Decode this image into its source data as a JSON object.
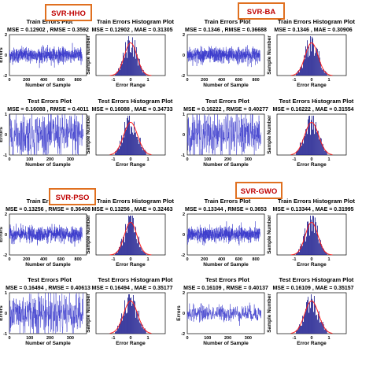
{
  "colors": {
    "badge_border": "#e07020",
    "badge_fill": "#ffffff",
    "badge_text": "#c00000",
    "signal": "#3a3acc",
    "bars": "#1c1c8e",
    "fit": "#ff2020",
    "axis": "#000000"
  },
  "chart_data": [
    {
      "group": "SVR-HHO",
      "panels": [
        {
          "type": "line",
          "title": "Train Errors Plot",
          "stats": "MSE = 0.12902 , RMSE = 0.3592",
          "xlabel": "Number of Sample",
          "ylabel": "Errors",
          "xlim": [
            0,
            900
          ],
          "ylim": [
            -2,
            2
          ],
          "x_ticks": [
            "0",
            "200",
            "400",
            "600",
            "800"
          ],
          "y_ticks": [
            "2",
            "0",
            "-2"
          ],
          "samples": 850,
          "error_amplitude": 0.36
        },
        {
          "type": "bar",
          "title": "Train Errors Histogram Plot",
          "stats": "MSE = 0.12902 , MAE = 0.31305",
          "xlabel": "Error Range",
          "ylabel": "Sample Number",
          "xlim": [
            -2,
            2
          ],
          "x_ticks": [
            "-1",
            "0",
            "1"
          ],
          "peak_count": 50,
          "sigma": 0.36
        }
      ]
    },
    {
      "group": "SVR-HHO",
      "panels": [
        {
          "type": "line",
          "title": "Test Errors Plot",
          "stats": "MSE = 0.16088 , RMSE = 0.4011",
          "xlabel": "Number of Sample",
          "ylabel": "Errors",
          "xlim": [
            0,
            380
          ],
          "ylim": [
            -1,
            1
          ],
          "x_ticks": [
            "0",
            "100",
            "200",
            "300"
          ],
          "y_ticks": [
            "1",
            "0",
            "-1"
          ],
          "samples": 365,
          "error_amplitude": 0.4
        },
        {
          "type": "bar",
          "title": "Test Errors Histogram Plot",
          "stats": "MSE = 0.16088 , MAE = 0.34733",
          "xlabel": "Error Range",
          "ylabel": "Sample Number",
          "xlim": [
            -2,
            2
          ],
          "x_ticks": [
            "-1",
            "0",
            "1"
          ],
          "peak_count": 20,
          "sigma": 0.4
        }
      ]
    },
    {
      "group": "SVR-BA",
      "panels": [
        {
          "type": "line",
          "title": "Train Errors Plot",
          "stats": "MSE = 0.1346 , RMSE = 0.36688",
          "xlabel": "Number of Sample",
          "ylabel": "",
          "xlim": [
            0,
            900
          ],
          "ylim": [
            -2,
            2
          ],
          "x_ticks": [
            "0",
            "200",
            "400",
            "600",
            "800"
          ],
          "y_ticks": [
            "2",
            "0",
            "-2"
          ],
          "samples": 850,
          "error_amplitude": 0.37
        },
        {
          "type": "bar",
          "title": "Train Errors Histogram Plot",
          "stats": "MSE = 0.1346 , MAE = 0.30906",
          "xlabel": "Error Range",
          "ylabel": "Sample Number",
          "xlim": [
            -2,
            2
          ],
          "x_ticks": [
            "-1",
            "0",
            "1"
          ],
          "peak_count": 50,
          "sigma": 0.37
        }
      ]
    },
    {
      "group": "SVR-BA",
      "panels": [
        {
          "type": "line",
          "title": "Test Errors Plot",
          "stats": "MSE = 0.16222 , RMSE = 0.40277",
          "xlabel": "Number of Sample",
          "ylabel": "",
          "xlim": [
            0,
            380
          ],
          "ylim": [
            -1,
            1
          ],
          "x_ticks": [
            "0",
            "100",
            "200",
            "300"
          ],
          "y_ticks": [
            "1",
            "0",
            "-1"
          ],
          "samples": 365,
          "error_amplitude": 0.4
        },
        {
          "type": "bar",
          "title": "Test Errors Histogram Plot",
          "stats": "MSE = 0.16222 , MAE = 0.31554",
          "xlabel": "Error Range",
          "ylabel": "Sample Number",
          "xlim": [
            -2,
            2
          ],
          "x_ticks": [
            "-1",
            "0",
            "1"
          ],
          "peak_count": 20,
          "sigma": 0.4
        }
      ]
    },
    {
      "group": "SVR-PSO",
      "panels": [
        {
          "type": "line",
          "title": "Train Errors Plot",
          "stats": "MSE = 0.13256 , RMSE = 0.36408",
          "xlabel": "Number of Sample",
          "ylabel": "Errors",
          "xlim": [
            0,
            900
          ],
          "ylim": [
            -2,
            2
          ],
          "x_ticks": [
            "0",
            "200",
            "400",
            "600",
            "800"
          ],
          "y_ticks": [
            "2",
            "0",
            "-2"
          ],
          "samples": 850,
          "error_amplitude": 0.36
        },
        {
          "type": "bar",
          "title": "Train Errors Histogram Plot",
          "stats": "MSE = 0.13256 , MAE = 0.32463",
          "xlabel": "Error Range",
          "ylabel": "Sample Number",
          "xlim": [
            -2,
            2
          ],
          "x_ticks": [
            "-1",
            "0",
            "1"
          ],
          "peak_count": 50,
          "sigma": 0.36
        }
      ]
    },
    {
      "group": "SVR-PSO",
      "panels": [
        {
          "type": "line",
          "title": "Test Errors Plot",
          "stats": "MSE = 0.16494 , RMSE = 0.40613",
          "xlabel": "Number of Sample",
          "ylabel": "Errors",
          "xlim": [
            0,
            380
          ],
          "ylim": [
            -1,
            1
          ],
          "x_ticks": [
            "0",
            "100",
            "200",
            "300"
          ],
          "y_ticks": [
            "1",
            "0",
            "-1"
          ],
          "samples": 365,
          "error_amplitude": 0.4
        },
        {
          "type": "bar",
          "title": "Test Errors Histogram Plot",
          "stats": "MSE = 0.16494 , MAE = 0.35177",
          "xlabel": "Error Range",
          "ylabel": "Sample Number",
          "xlim": [
            -2,
            2
          ],
          "x_ticks": [
            "-1",
            "0",
            "1"
          ],
          "peak_count": 20,
          "sigma": 0.4
        }
      ]
    },
    {
      "group": "SVR-GWO",
      "panels": [
        {
          "type": "line",
          "title": "Train Errors Plot",
          "stats": "MSE = 0.13344 , RMSE = 0.3653",
          "xlabel": "Number of Sample",
          "ylabel": "",
          "xlim": [
            0,
            900
          ],
          "ylim": [
            -2,
            2
          ],
          "x_ticks": [
            "0",
            "200",
            "400",
            "600",
            "800"
          ],
          "y_ticks": [
            "2",
            "0",
            "-2"
          ],
          "samples": 850,
          "error_amplitude": 0.36
        },
        {
          "type": "bar",
          "title": "Train Errors Histogram Plot",
          "stats": "MSE = 0.13344 , MAE = 0.31995",
          "xlabel": "Error Range",
          "ylabel": "Sample Number",
          "xlim": [
            -2,
            2
          ],
          "x_ticks": [
            "-1",
            "0",
            "1"
          ],
          "peak_count": 50,
          "sigma": 0.36
        }
      ]
    },
    {
      "group": "SVR-GWO",
      "panels": [
        {
          "type": "line",
          "title": "Test Errors Plot",
          "stats": "MSE = 0.16109 , RMSE = 0.40137",
          "xlabel": "Number of Sample",
          "ylabel": "Errors",
          "xlim": [
            0,
            380
          ],
          "ylim": [
            -2,
            2
          ],
          "x_ticks": [
            "0",
            "100",
            "200",
            "300"
          ],
          "y_ticks": [
            "2",
            "0",
            "-2"
          ],
          "samples": 365,
          "error_amplitude": 0.4
        },
        {
          "type": "bar",
          "title": "Test Errors Histogram Plot",
          "stats": "MSE = 0.16109 , MAE = 0.35157",
          "xlabel": "Error Range",
          "ylabel": "Sample Number",
          "xlim": [
            -2,
            2
          ],
          "x_ticks": [
            "-1",
            "0",
            "1"
          ],
          "peak_count": 20,
          "sigma": 0.4
        }
      ]
    }
  ],
  "badges": [
    "SVR-HHO",
    "SVR-BA",
    "SVR-PSO",
    "SVR-GWO"
  ]
}
